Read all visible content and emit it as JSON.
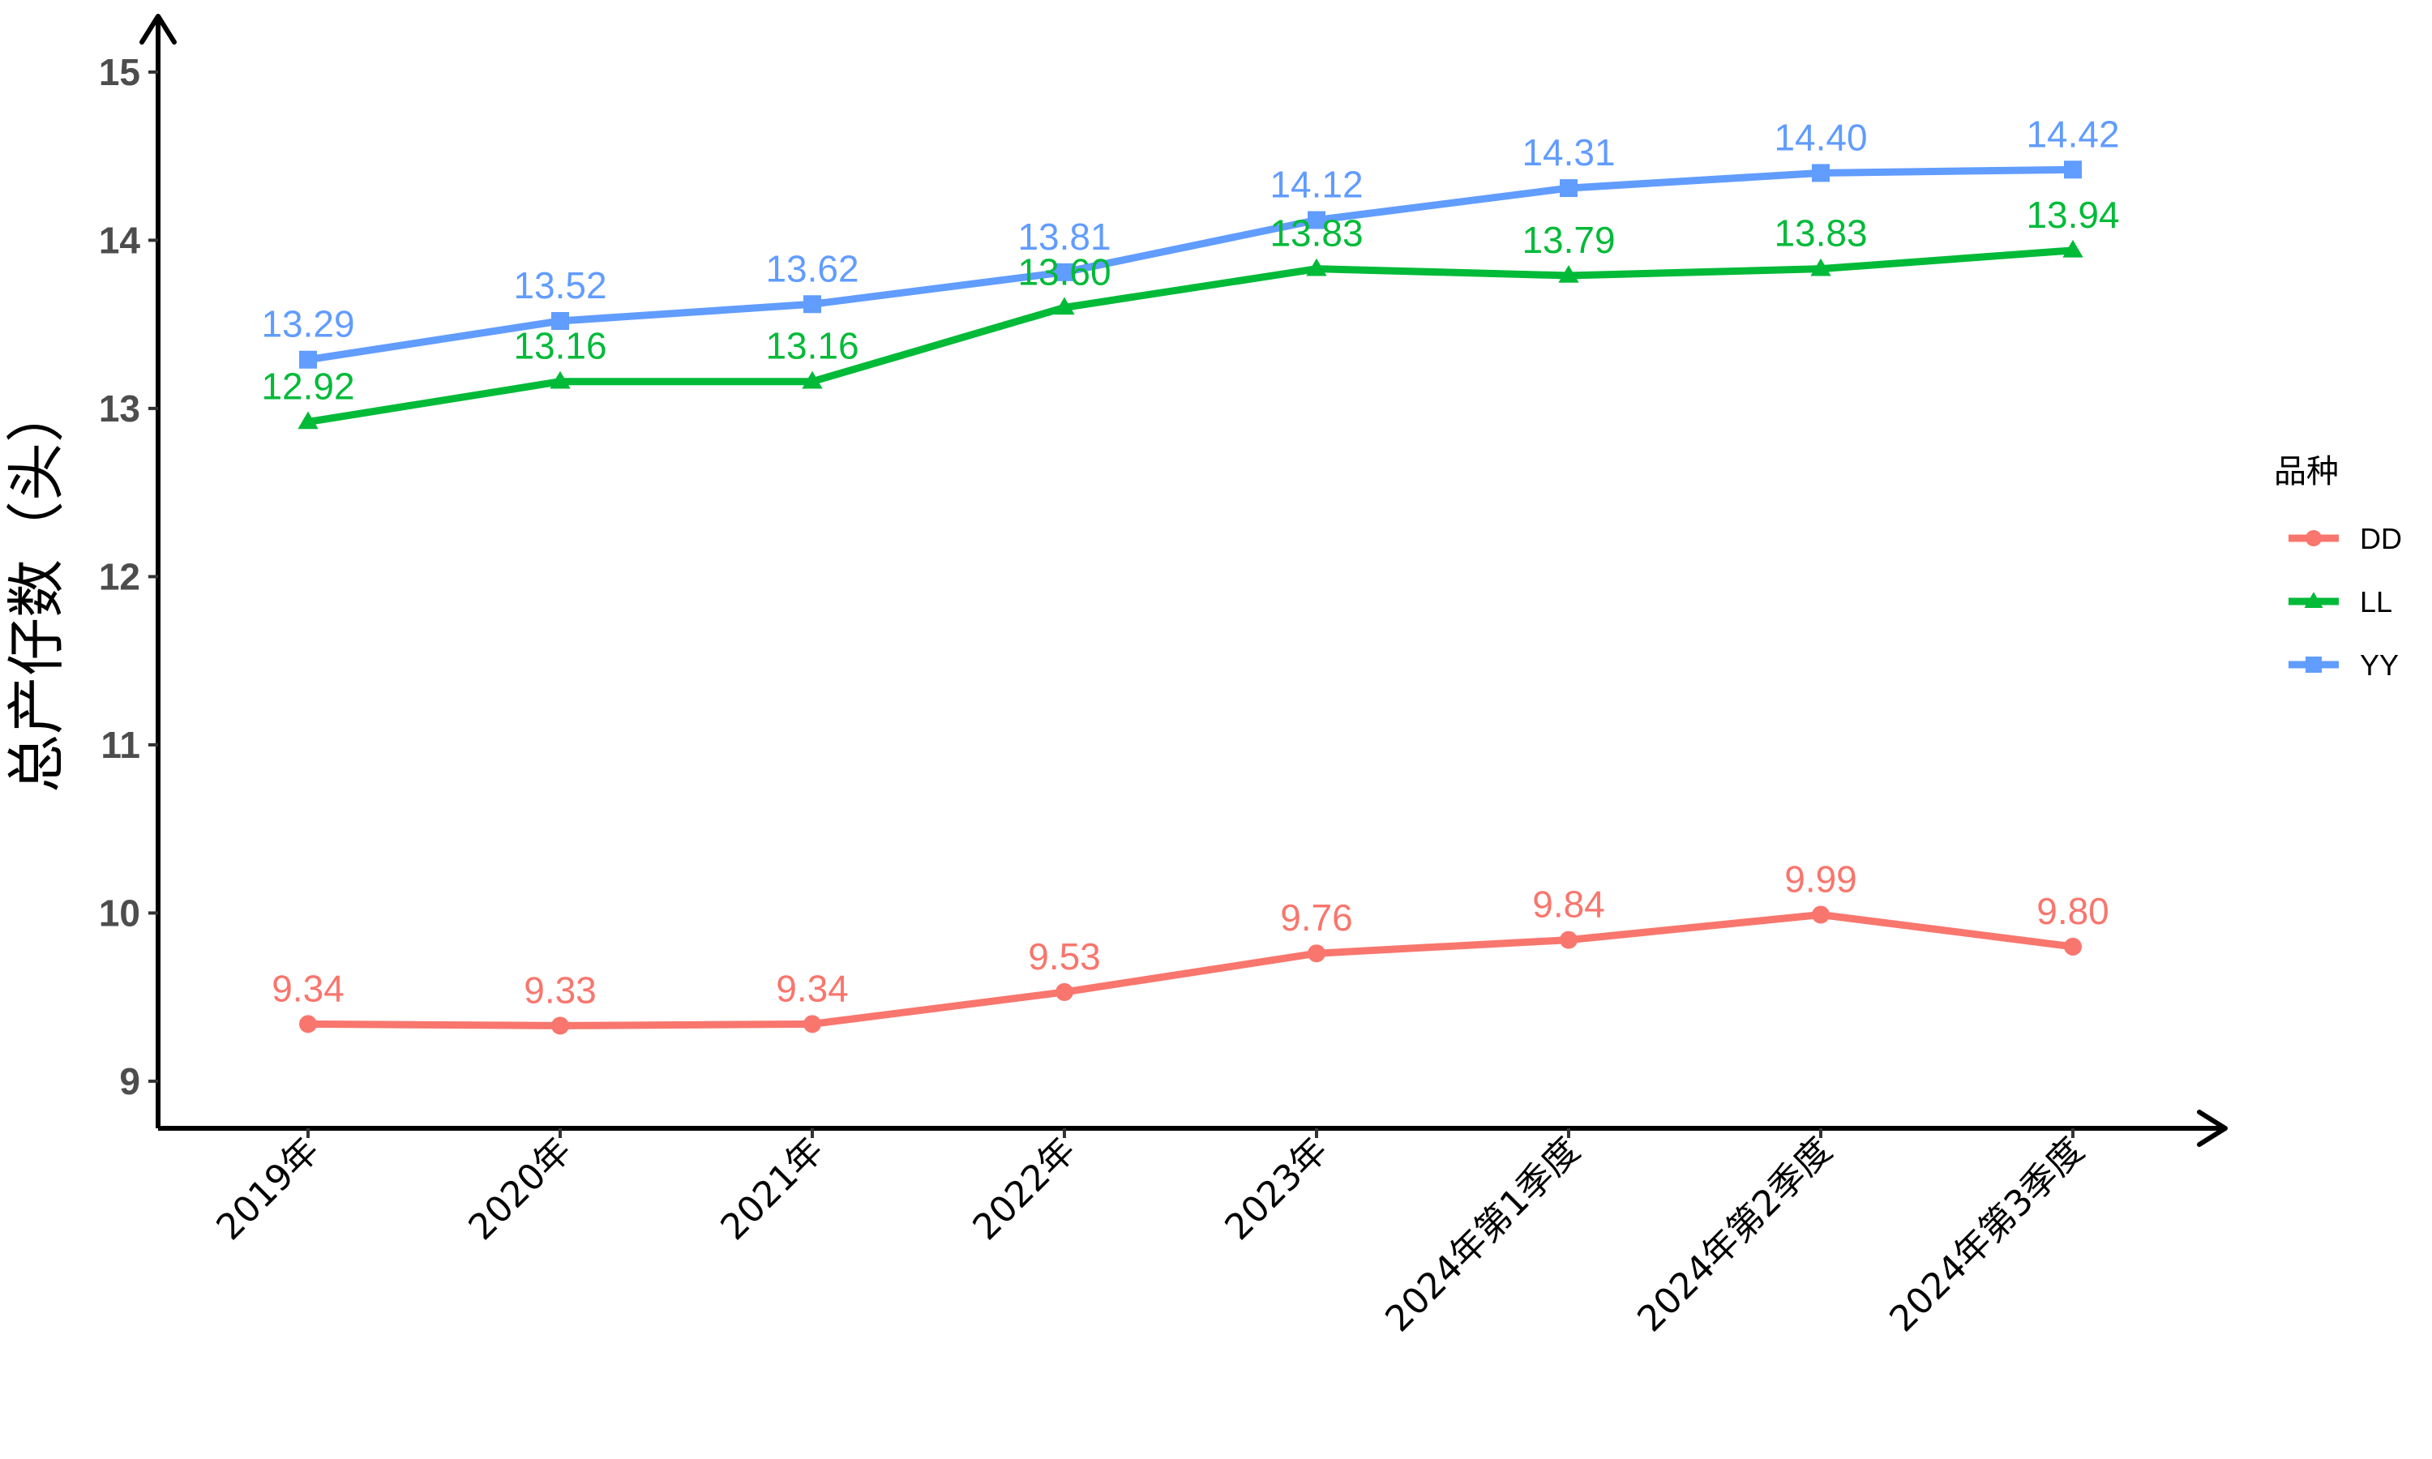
{
  "chart_data": {
    "type": "line",
    "title": "",
    "xlabel": "",
    "ylabel": "总产仔数（头）",
    "categories": [
      "2019年",
      "2020年",
      "2021年",
      "2022年",
      "2023年",
      "2024年第1季度",
      "2024年第2季度",
      "2024年第3季度"
    ],
    "ylim": [
      8.72,
      15.2
    ],
    "yticks": [
      9,
      10,
      11,
      12,
      13,
      14,
      15
    ],
    "grid": false,
    "legend": {
      "title": "品种",
      "position": "right"
    },
    "series": [
      {
        "name": "DD",
        "color": "#F8766D",
        "marker": "circle",
        "values": [
          9.34,
          9.33,
          9.34,
          9.53,
          9.76,
          9.84,
          9.99,
          9.8
        ],
        "labels": [
          "9.34",
          "9.33",
          "9.34",
          "9.53",
          "9.76",
          "9.84",
          "9.99",
          "9.80"
        ]
      },
      {
        "name": "LL",
        "color": "#00BA38",
        "marker": "triangle",
        "values": [
          12.92,
          13.16,
          13.16,
          13.6,
          13.83,
          13.79,
          13.83,
          13.94
        ],
        "labels": [
          "12.92",
          "13.16",
          "13.16",
          "13.60",
          "13.83",
          "13.79",
          "13.83",
          "13.94"
        ]
      },
      {
        "name": "YY",
        "color": "#619CFF",
        "marker": "square",
        "values": [
          13.29,
          13.52,
          13.62,
          13.81,
          14.12,
          14.31,
          14.4,
          14.42
        ],
        "labels": [
          "13.29",
          "13.52",
          "13.62",
          "13.81",
          "14.12",
          "14.31",
          "14.40",
          "14.42"
        ]
      }
    ]
  }
}
